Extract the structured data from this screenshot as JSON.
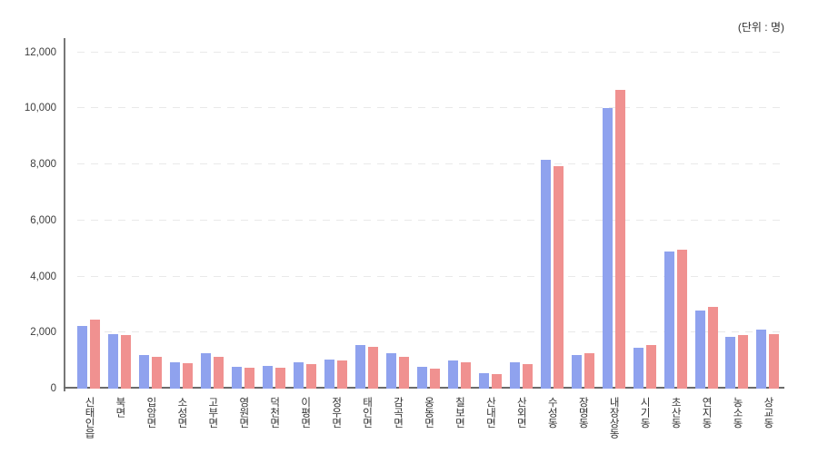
{
  "chart": {
    "unit_label": "(단위 : 명)",
    "colors": {
      "series_blue": "#8fa2ee",
      "series_red": "#f09190",
      "axis": "#6b6b6b",
      "grid": "#e9e9e9",
      "text": "#333333"
    }
  },
  "chart_data": {
    "type": "bar",
    "title": "",
    "unit": "(단위 : 명)",
    "legend": "none",
    "grid": "horizontal-dashed",
    "ylim": [
      0,
      12000
    ],
    "y_ticks": [
      0,
      2000,
      4000,
      6000,
      8000,
      10000,
      12000
    ],
    "y_tick_labels": [
      "0",
      "2,000",
      "4,000",
      "6,000",
      "8,000",
      "10,000",
      "12,000"
    ],
    "categories": [
      "신태인읍",
      "북면",
      "입암면",
      "소성면",
      "고부면",
      "영원면",
      "덕천면",
      "이평면",
      "정우면",
      "태인면",
      "감곡면",
      "옹동면",
      "칠보면",
      "산내면",
      "산외면",
      "수성동",
      "장명동",
      "내장상동",
      "시기동",
      "초산동",
      "연지동",
      "농소동",
      "상교동"
    ],
    "series": [
      {
        "name": "blue",
        "color": "#8fa2ee",
        "values": [
          2250,
          1950,
          1200,
          950,
          1250,
          780,
          800,
          950,
          1050,
          1550,
          1250,
          780,
          1000,
          560,
          950,
          8150,
          1200,
          10000,
          1450,
          4900,
          2800,
          1850,
          2100
        ]
      },
      {
        "name": "red",
        "color": "#f09190",
        "values": [
          2450,
          1900,
          1150,
          900,
          1150,
          730,
          740,
          880,
          1000,
          1500,
          1150,
          700,
          950,
          510,
          870,
          7950,
          1250,
          10650,
          1550,
          4950,
          2900,
          1900,
          1950
        ]
      }
    ]
  }
}
